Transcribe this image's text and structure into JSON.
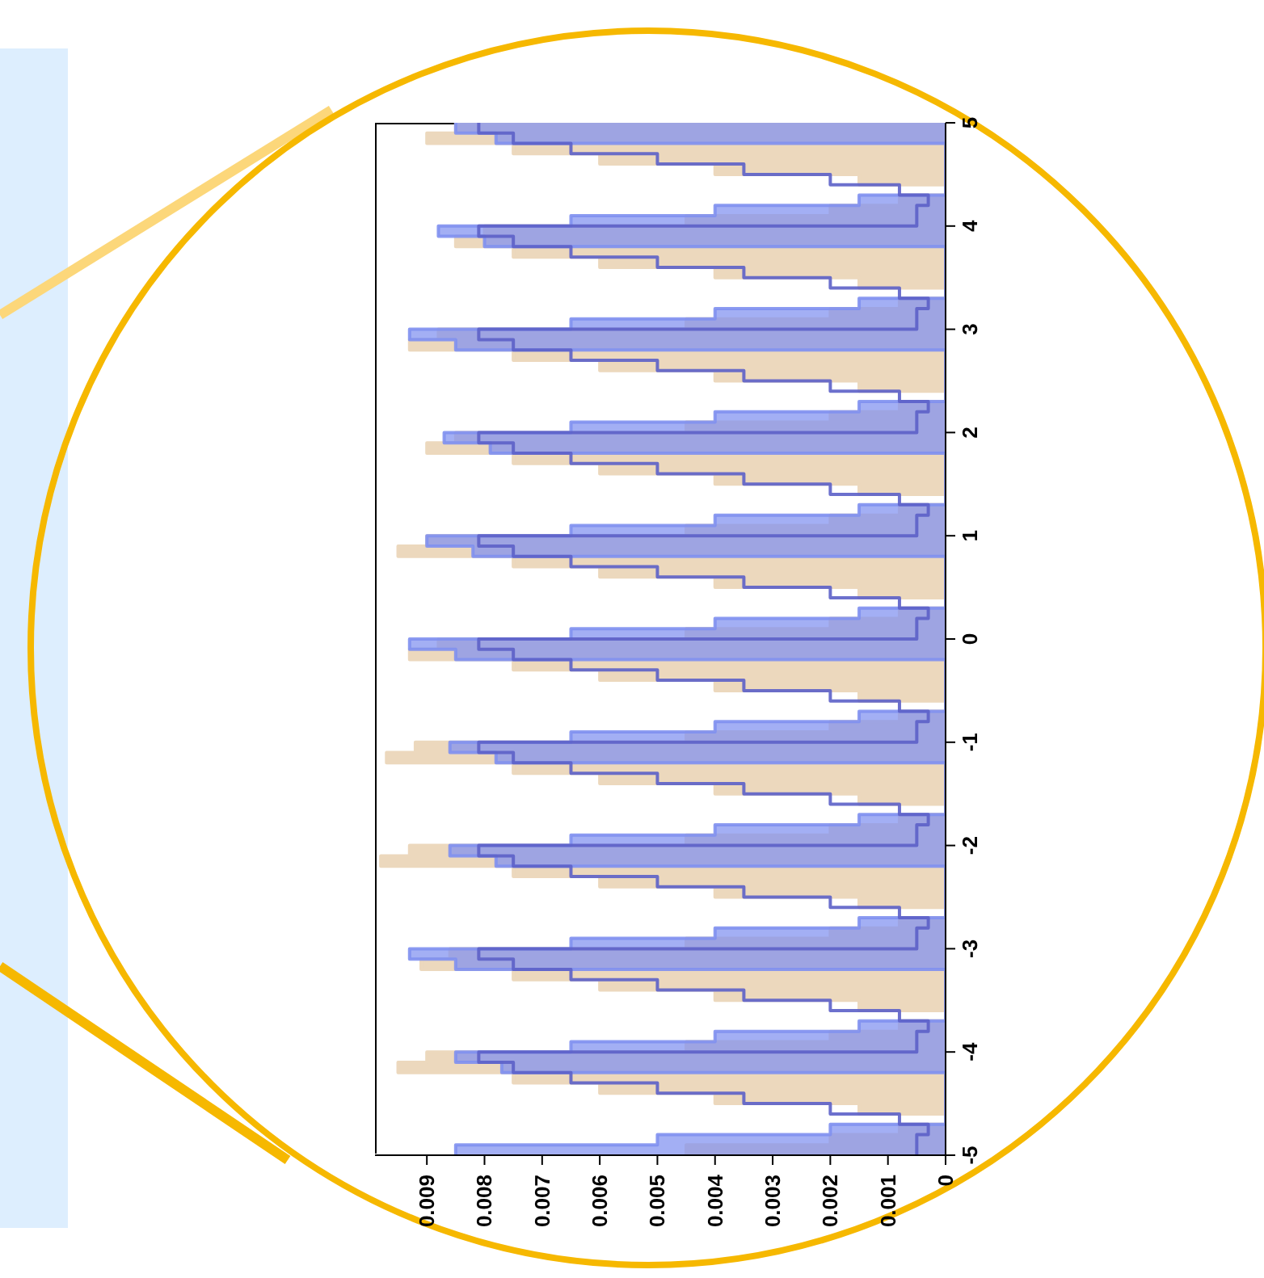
{
  "chart_data": {
    "type": "histogram",
    "orientation": "horizontal",
    "bins": [
      -5,
      -4.9,
      -4.8,
      -4.7,
      -4.6,
      -4.5,
      -4.4,
      -4.3,
      -4.2,
      -4.1,
      -4,
      -3.9,
      -3.8,
      -3.7,
      -3.6,
      -3.5,
      -3.4,
      -3.3,
      -3.2,
      -3.1,
      -3,
      -2.9,
      -2.8,
      -2.7,
      -2.6,
      -2.5,
      -2.4,
      -2.3,
      -2.2,
      -2.1,
      -2,
      -1.9,
      -1.8,
      -1.7,
      -1.6,
      -1.5,
      -1.4,
      -1.3,
      -1.2,
      -1.1,
      -1,
      -0.9,
      -0.8,
      -0.7,
      -0.6,
      -0.5,
      -0.4,
      -0.3,
      -0.2,
      -0.1,
      0,
      0.1,
      0.2,
      0.3,
      0.4,
      0.5,
      0.6,
      0.7,
      0.8,
      0.9,
      1,
      1.1,
      1.2,
      1.3,
      1.4,
      1.5,
      1.6,
      1.7,
      1.8,
      1.9,
      2,
      2.1,
      2.2,
      2.3,
      2.4,
      2.5,
      2.6,
      2.7,
      2.8,
      2.9,
      3,
      3.1,
      3.2,
      3.3,
      3.4,
      3.5,
      3.6,
      3.7,
      3.8,
      3.9,
      4,
      4.1,
      4.2,
      4.3,
      4.4,
      4.5,
      4.6,
      4.7,
      4.8,
      4.9,
      5
    ],
    "series": [
      {
        "color": "#ecd8bd",
        "values": [
          0.0045,
          0.002,
          0.0008,
          0,
          0.0015,
          0.004,
          0.006,
          0.0075,
          0.0095,
          0.009,
          0.0045,
          0.002,
          0.0008,
          0,
          0.0015,
          0.004,
          0.006,
          0.0075,
          0.0091,
          0.0086,
          0.0045,
          0.002,
          0.0008,
          0,
          0.0015,
          0.004,
          0.006,
          0.0075,
          0.0098,
          0.0093,
          0.0045,
          0.002,
          0.0008,
          0,
          0.0015,
          0.004,
          0.006,
          0.0075,
          0.0097,
          0.0092,
          0.0045,
          0.002,
          0.0008,
          0,
          0.0015,
          0.004,
          0.006,
          0.0075,
          0.0093,
          0.0088,
          0.0045,
          0.002,
          0.0008,
          0,
          0.0015,
          0.004,
          0.006,
          0.0075,
          0.0095,
          0.009,
          0.0045,
          0.002,
          0.0008,
          0,
          0.0015,
          0.004,
          0.006,
          0.0075,
          0.009,
          0.0085,
          0.0045,
          0.002,
          0.0008,
          0,
          0.0015,
          0.004,
          0.006,
          0.0075,
          0.0093,
          0.0088,
          0.0045,
          0.002,
          0.0008,
          0,
          0.0015,
          0.004,
          0.006,
          0.0075,
          0.0085,
          0.008,
          0.0045,
          0.002,
          0.0008,
          0,
          0.0015,
          0.004,
          0.006,
          0.0075,
          0.009,
          0.0085
        ]
      },
      {
        "color": "#8090f0",
        "values": [
          0.0085,
          0.005,
          0.002,
          0,
          0,
          0,
          0,
          0,
          0.0077,
          0.0085,
          0.0065,
          0.004,
          0.0015,
          0,
          0,
          0,
          0,
          0,
          0.0085,
          0.0093,
          0.0065,
          0.004,
          0.0015,
          0,
          0,
          0,
          0,
          0,
          0.0078,
          0.0086,
          0.0065,
          0.004,
          0.0015,
          0,
          0,
          0,
          0,
          0,
          0.0078,
          0.0086,
          0.0065,
          0.004,
          0.0015,
          0,
          0,
          0,
          0,
          0,
          0.0085,
          0.0093,
          0.0065,
          0.004,
          0.0015,
          0,
          0,
          0,
          0,
          0,
          0.0082,
          0.009,
          0.0065,
          0.004,
          0.0015,
          0,
          0,
          0,
          0,
          0,
          0.0079,
          0.0087,
          0.0065,
          0.004,
          0.0015,
          0,
          0,
          0,
          0,
          0,
          0.0085,
          0.0093,
          0.0065,
          0.004,
          0.0015,
          0,
          0,
          0,
          0,
          0,
          0.008,
          0.0088,
          0.0065,
          0.004,
          0.0015,
          0,
          0,
          0,
          0,
          0,
          0.0078,
          0.0085
        ]
      },
      {
        "line_style": "solid",
        "color": "#5c60c8",
        "values": [
          0.0005,
          0.0005,
          0.0003,
          0.0008,
          0.002,
          0.0035,
          0.005,
          0.0065,
          0.0075,
          0.0081,
          0.0005,
          0.0005,
          0.0003,
          0.0008,
          0.002,
          0.0035,
          0.005,
          0.0065,
          0.0075,
          0.0081,
          0.0005,
          0.0005,
          0.0003,
          0.0008,
          0.002,
          0.0035,
          0.005,
          0.0065,
          0.0075,
          0.0081,
          0.0005,
          0.0005,
          0.0003,
          0.0008,
          0.002,
          0.0035,
          0.005,
          0.0065,
          0.0075,
          0.0081,
          0.0005,
          0.0005,
          0.0003,
          0.0008,
          0.002,
          0.0035,
          0.005,
          0.0065,
          0.0075,
          0.0081,
          0.0005,
          0.0005,
          0.0003,
          0.0008,
          0.002,
          0.0035,
          0.005,
          0.0065,
          0.0075,
          0.0081,
          0.0005,
          0.0005,
          0.0003,
          0.0008,
          0.002,
          0.0035,
          0.005,
          0.0065,
          0.0075,
          0.0081,
          0.0005,
          0.0005,
          0.0003,
          0.0008,
          0.002,
          0.0035,
          0.005,
          0.0065,
          0.0075,
          0.0081,
          0.0005,
          0.0005,
          0.0003,
          0.0008,
          0.002,
          0.0035,
          0.005,
          0.0065,
          0.0075,
          0.0081,
          0.0005,
          0.0005,
          0.0003,
          0.0008,
          0.002,
          0.0035,
          0.005,
          0.0065,
          0.0075,
          0.0081
        ]
      }
    ],
    "xlim": [
      0.0099,
      0
    ],
    "xticks": [
      0,
      0.001,
      0.002,
      0.003,
      0.004,
      0.005,
      0.006,
      0.007,
      0.008,
      0.009
    ],
    "ylim": [
      -5,
      5
    ],
    "yticks": [
      -5,
      -4,
      -3,
      -2,
      -1,
      0,
      1,
      2,
      3,
      4,
      5
    ]
  }
}
